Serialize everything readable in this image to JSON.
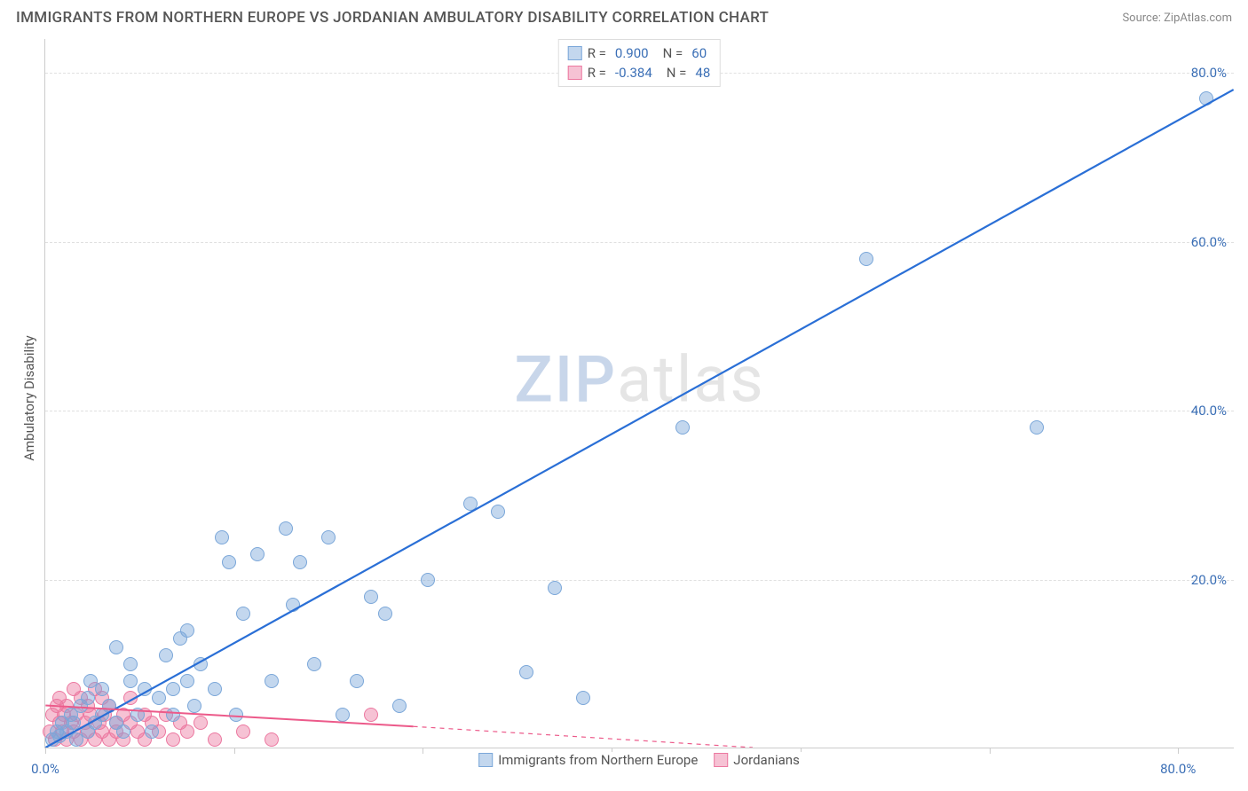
{
  "header": {
    "title": "IMMIGRANTS FROM NORTHERN EUROPE VS JORDANIAN AMBULATORY DISABILITY CORRELATION CHART",
    "source_label": "Source:",
    "source_name": "ZipAtlas.com"
  },
  "chart": {
    "type": "scatter",
    "y_axis_title": "Ambulatory Disability",
    "xlim": [
      0,
      84
    ],
    "ylim": [
      0,
      84
    ],
    "y_ticks": [
      20,
      40,
      60,
      80
    ],
    "y_tick_labels": [
      "20.0%",
      "40.0%",
      "60.0%",
      "80.0%"
    ],
    "x_ticks_major": [
      0,
      13.33,
      26.67,
      40,
      53.33,
      66.67,
      80
    ],
    "x_origin_label": "0.0%",
    "x_end_label": "80.0%",
    "grid_color": "#e0e0e0",
    "axis_color": "#cccccc",
    "background_color": "#ffffff",
    "tick_label_color": "#3b6fb6",
    "point_radius": 8,
    "watermark": {
      "part1": "ZIP",
      "part2": "atlas"
    },
    "series": {
      "blue": {
        "label": "Immigrants from Northern Europe",
        "R": "0.900",
        "N": "60",
        "fill_color": "rgba(123,167,217,0.45)",
        "stroke_color": "#7ba7d9",
        "line_color": "#2a6fd6",
        "line_width": 2.2,
        "trend": {
          "x1": 0,
          "y1": 0,
          "x2": 84,
          "y2": 78
        },
        "points": [
          [
            0.5,
            1
          ],
          [
            0.8,
            2
          ],
          [
            1,
            1.5
          ],
          [
            1.2,
            3
          ],
          [
            1.5,
            2
          ],
          [
            1.8,
            4
          ],
          [
            2,
            3
          ],
          [
            2.2,
            1
          ],
          [
            2.5,
            5
          ],
          [
            3,
            2
          ],
          [
            3,
            6
          ],
          [
            3.2,
            8
          ],
          [
            3.5,
            3
          ],
          [
            4,
            4
          ],
          [
            4,
            7
          ],
          [
            4.5,
            5
          ],
          [
            5,
            12
          ],
          [
            5,
            3
          ],
          [
            5.5,
            2
          ],
          [
            6,
            8
          ],
          [
            6,
            10
          ],
          [
            6.5,
            4
          ],
          [
            7,
            7
          ],
          [
            7.5,
            2
          ],
          [
            8,
            6
          ],
          [
            8.5,
            11
          ],
          [
            9,
            7
          ],
          [
            9,
            4
          ],
          [
            9.5,
            13
          ],
          [
            10,
            8
          ],
          [
            10.5,
            5
          ],
          [
            11,
            10
          ],
          [
            12,
            7
          ],
          [
            12.5,
            25
          ],
          [
            13,
            22
          ],
          [
            13.5,
            4
          ],
          [
            14,
            16
          ],
          [
            15,
            23
          ],
          [
            16,
            8
          ],
          [
            17,
            26
          ],
          [
            17.5,
            17
          ],
          [
            18,
            22
          ],
          [
            19,
            10
          ],
          [
            20,
            25
          ],
          [
            21,
            4
          ],
          [
            22,
            8
          ],
          [
            23,
            18
          ],
          [
            24,
            16
          ],
          [
            25,
            5
          ],
          [
            27,
            20
          ],
          [
            30,
            29
          ],
          [
            32,
            28
          ],
          [
            34,
            9
          ],
          [
            36,
            19
          ],
          [
            38,
            6
          ],
          [
            45,
            38
          ],
          [
            58,
            58
          ],
          [
            70,
            38
          ],
          [
            82,
            77
          ],
          [
            10,
            14
          ]
        ]
      },
      "pink": {
        "label": "Jordanians",
        "R": "-0.384",
        "N": "48",
        "fill_color": "rgba(236,120,160,0.45)",
        "stroke_color": "#ec78a0",
        "line_color": "#ec5a8a",
        "line_width": 2,
        "trend_solid": {
          "x1": 0,
          "y1": 5,
          "x2": 26,
          "y2": 2.5
        },
        "trend_dash": {
          "x1": 26,
          "y1": 2.5,
          "x2": 50,
          "y2": 0
        },
        "points": [
          [
            0.3,
            2
          ],
          [
            0.5,
            4
          ],
          [
            0.7,
            1
          ],
          [
            0.8,
            5
          ],
          [
            1,
            3
          ],
          [
            1,
            6
          ],
          [
            1.2,
            2
          ],
          [
            1.3,
            4
          ],
          [
            1.5,
            1
          ],
          [
            1.5,
            5
          ],
          [
            1.8,
            3
          ],
          [
            2,
            2
          ],
          [
            2,
            7
          ],
          [
            2.2,
            4
          ],
          [
            2.5,
            1
          ],
          [
            2.5,
            6
          ],
          [
            2.8,
            3
          ],
          [
            3,
            2
          ],
          [
            3,
            5
          ],
          [
            3.2,
            4
          ],
          [
            3.5,
            1
          ],
          [
            3.5,
            7
          ],
          [
            3.8,
            3
          ],
          [
            4,
            2
          ],
          [
            4,
            6
          ],
          [
            4.2,
            4
          ],
          [
            4.5,
            1
          ],
          [
            4.5,
            5
          ],
          [
            5,
            3
          ],
          [
            5,
            2
          ],
          [
            5.5,
            4
          ],
          [
            5.5,
            1
          ],
          [
            6,
            3
          ],
          [
            6,
            6
          ],
          [
            6.5,
            2
          ],
          [
            7,
            4
          ],
          [
            7,
            1
          ],
          [
            7.5,
            3
          ],
          [
            8,
            2
          ],
          [
            8.5,
            4
          ],
          [
            9,
            1
          ],
          [
            9.5,
            3
          ],
          [
            10,
            2
          ],
          [
            11,
            3
          ],
          [
            12,
            1
          ],
          [
            14,
            2
          ],
          [
            16,
            1
          ],
          [
            23,
            4
          ]
        ]
      }
    },
    "legend_top": {
      "R_label": "R =",
      "N_label": "N ="
    }
  }
}
